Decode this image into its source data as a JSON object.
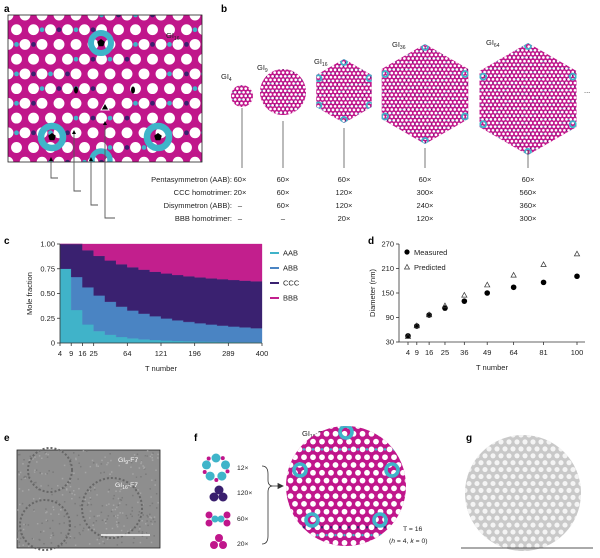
{
  "panel_labels": {
    "a": "a",
    "b": "b",
    "c": "c",
    "d": "d",
    "e": "e",
    "f": "f",
    "g": "g"
  },
  "panel_a": {
    "structure_label": "GI",
    "structure_sub": "16"
  },
  "panel_b": {
    "structures": [
      {
        "label": "GI",
        "sub": "4"
      },
      {
        "label": "GI",
        "sub": "9"
      },
      {
        "label": "GI",
        "sub": "16"
      },
      {
        "label": "GI",
        "sub": "36"
      },
      {
        "label": "GI",
        "sub": "64"
      }
    ],
    "ellipsis": "...",
    "rows": [
      {
        "label": "Pentasymmetron (AAB):",
        "values": [
          "60×",
          "60×",
          "60×",
          "60×",
          "60×"
        ]
      },
      {
        "label": "CCC homotrimer:",
        "values": [
          "20×",
          "60×",
          "120×",
          "300×",
          "560×"
        ]
      },
      {
        "label": "Disymmetron (ABB):",
        "values": [
          "–",
          "60×",
          "120×",
          "240×",
          "360×"
        ]
      },
      {
        "label": "BBB homotrimer:",
        "values": [
          "–",
          "–",
          "20×",
          "120×",
          "300×"
        ]
      }
    ]
  },
  "colors": {
    "cyan": "#3fb4c9",
    "magenta": "#c0168b",
    "purple": "#3a1f6e",
    "abb": "#4a84c3",
    "gray": "#c8c8c8"
  },
  "chart_data": [
    {
      "type": "area",
      "stacked": true,
      "step": true,
      "xlabel": "T number",
      "ylabel": "Mole fraction",
      "xscale": "sqrt",
      "xlim": [
        4,
        400
      ],
      "ylim": [
        0,
        1
      ],
      "xticks": [
        4,
        9,
        16,
        25,
        64,
        121,
        196,
        289,
        400
      ],
      "yticks": [
        "0",
        "0.25",
        "0.50",
        "0.75",
        "1.00"
      ],
      "legend_position": "right",
      "x": [
        4,
        9,
        16,
        25,
        36,
        49,
        64,
        81,
        100,
        121,
        144,
        169,
        196,
        225,
        256,
        289,
        324,
        361,
        400
      ],
      "series": [
        {
          "name": "AAB",
          "color": "#40b3c9",
          "values": [
            0.75,
            0.3333,
            0.1875,
            0.12,
            0.0833,
            0.0612,
            0.0469,
            0.037,
            0.03,
            0.0248,
            0.0208,
            0.0178,
            0.0153,
            0.0133,
            0.0117,
            0.0104,
            0.0093,
            0.0083,
            0.0075
          ]
        },
        {
          "name": "ABB",
          "color": "#4a84c3",
          "values": [
            0,
            0.3333,
            0.375,
            0.36,
            0.3333,
            0.3061,
            0.2813,
            0.2593,
            0.24,
            0.2231,
            0.2083,
            0.1953,
            0.1837,
            0.1733,
            0.1641,
            0.1557,
            0.1481,
            0.1413,
            0.135
          ]
        },
        {
          "name": "CCC",
          "color": "#3a2170",
          "values": [
            0.25,
            0.3333,
            0.375,
            0.4,
            0.4167,
            0.4286,
            0.4375,
            0.4444,
            0.45,
            0.4545,
            0.4583,
            0.4615,
            0.4643,
            0.4667,
            0.4688,
            0.4706,
            0.4722,
            0.4737,
            0.475
          ]
        },
        {
          "name": "BBB",
          "color": "#c21f8d",
          "values": [
            0,
            0,
            0.0625,
            0.12,
            0.1667,
            0.2041,
            0.2344,
            0.2593,
            0.28,
            0.2975,
            0.3125,
            0.3254,
            0.3367,
            0.3467,
            0.3555,
            0.3633,
            0.3704,
            0.3767,
            0.3825
          ]
        }
      ]
    },
    {
      "type": "scatter",
      "xlabel": "T number",
      "ylabel": "Diameter (nm)",
      "xlim": [
        4,
        100
      ],
      "ylim": [
        30,
        270
      ],
      "xticks": [
        4,
        9,
        16,
        25,
        36,
        49,
        64,
        81,
        100
      ],
      "yticks": [
        30,
        90,
        150,
        210,
        270
      ],
      "legend_position": "top-left",
      "x": [
        4,
        9,
        16,
        25,
        36,
        49,
        64,
        81,
        100
      ],
      "series": [
        {
          "name": "Measured",
          "marker": "filled-circle",
          "values": [
            45,
            69,
            96,
            113,
            130,
            150,
            164,
            176,
            191
          ]
        },
        {
          "name": "Predicted",
          "marker": "open-triangle",
          "values": [
            44,
            70,
            97,
            119,
            145,
            170,
            194,
            220,
            246
          ]
        }
      ]
    }
  ],
  "panel_e": {
    "label1_main": "GI",
    "label1_sub": "9",
    "label1_suffix": "-F7",
    "label2_main": "GI",
    "label2_sub": "16",
    "label2_suffix": "-F7"
  },
  "panel_f": {
    "title_main": "GI",
    "title_sub": "16",
    "title_suffix": "-F7",
    "components": [
      {
        "name": "pentasymmetron",
        "count": "12×"
      },
      {
        "name": "ccc-homotrimer",
        "count": "120×"
      },
      {
        "name": "disymmetron",
        "count": "60×"
      },
      {
        "name": "bbb-homotrimer",
        "count": "20×"
      }
    ],
    "t_number": "T = 16",
    "hk_open": "(",
    "hk_h": "h",
    "hk_mid": " = 4, ",
    "hk_k": "k",
    "hk_end": " = 0)"
  }
}
